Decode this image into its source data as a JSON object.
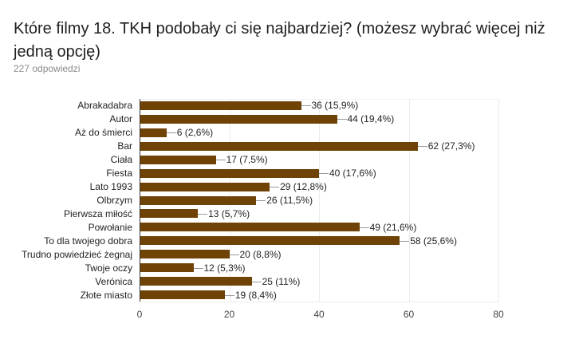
{
  "header": {
    "title": "Które filmy 18. TKH podobały ci się najbardziej? (możesz wybrać więcej niż jedną opcję)",
    "responses": "227 odpowiedzi"
  },
  "colors": {
    "bar": "#6f4305",
    "gridline": "#ebebeb",
    "axis": "#333333"
  },
  "chart_data": {
    "type": "bar",
    "orientation": "horizontal",
    "title": "Które filmy 18. TKH podobały ci się najbardziej? (możesz wybrać więcej niż jedną opcję)",
    "subtitle": "227 odpowiedzi",
    "xlabel": "",
    "ylabel": "",
    "xlim": [
      0,
      80
    ],
    "xticks": [
      0,
      20,
      40,
      60,
      80
    ],
    "grid": true,
    "legend": null,
    "categories": [
      "Abrakadabra",
      "Autor",
      "Aż do śmierci",
      "Bar",
      "Ciała",
      "Fiesta",
      "Lato 1993",
      "Olbrzym",
      "Pierwsza miłość",
      "Powołanie",
      "To dla twojego dobra",
      "Trudno powiedzieć żegnaj",
      "Twoje oczy",
      "Verónica",
      "Złote miasto"
    ],
    "values": [
      36,
      44,
      6,
      62,
      17,
      40,
      29,
      26,
      13,
      49,
      58,
      20,
      12,
      25,
      19
    ],
    "labels": [
      "36 (15,9%)",
      "44 (19,4%)",
      "6 (2,6%)",
      "62 (27,3%)",
      "17 (7,5%)",
      "40 (17,6%)",
      "29 (12,8%)",
      "26 (11,5%)",
      "13 (5,7%)",
      "49 (21,6%)",
      "58 (25,6%)",
      "20 (8,8%)",
      "12 (5,3%)",
      "25 (11%)",
      "19 (8,4%)"
    ]
  }
}
